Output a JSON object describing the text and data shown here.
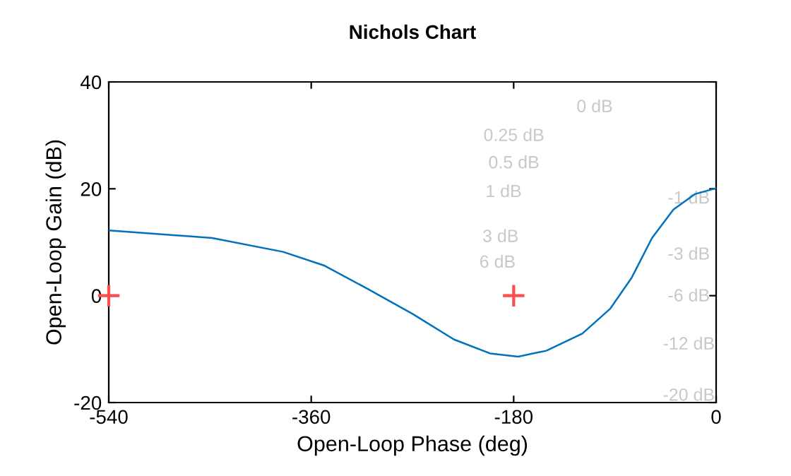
{
  "chart_data": {
    "type": "line",
    "title": "Nichols Chart",
    "xlabel": "Open-Loop Phase (deg)",
    "ylabel": "Open-Loop Gain (dB)",
    "xlim": [
      -540,
      0
    ],
    "ylim": [
      -20,
      40
    ],
    "xticks": [
      -540,
      -360,
      -180,
      0
    ],
    "yticks": [
      -20,
      0,
      20,
      40
    ],
    "series": [
      {
        "color": "#0072bd",
        "x": [
          -540,
          -448,
          -385,
          -348,
          -310,
          -270,
          -233,
          -201,
          -176,
          -151,
          -119,
          -94,
          -75,
          -57,
          -38,
          -19,
          0
        ],
        "values": [
          12.2,
          10.8,
          8.2,
          5.6,
          1.3,
          -3.4,
          -8.2,
          -10.8,
          -11.4,
          -10.3,
          -7.1,
          -2.4,
          3.4,
          10.8,
          16.1,
          19,
          20.1
        ]
      },
      {
        "type": "scatter",
        "color": "#ff4d4d",
        "marker": "cross",
        "x": [
          -540,
          -180
        ],
        "values": [
          0,
          0
        ]
      }
    ],
    "annotations": [
      "0 dB",
      "0.25 dB",
      "0.5 dB",
      "1 dB",
      "3 dB",
      "6 dB",
      "-1 dB",
      "-3 dB",
      "-6 dB",
      "-12 dB",
      "-20 dB"
    ]
  }
}
